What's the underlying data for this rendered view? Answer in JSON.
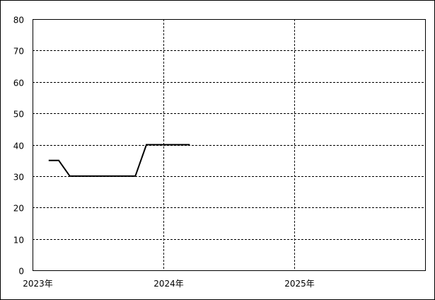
{
  "chart_data": {
    "type": "line",
    "title": "",
    "xlabel": "",
    "ylabel": "",
    "ylim": [
      0,
      80
    ],
    "yticks": [
      "0",
      "10",
      "20",
      "30",
      "40",
      "50",
      "60",
      "70",
      "80"
    ],
    "xlim": [
      "2023-01-01",
      "2026-01-01"
    ],
    "xticks": [
      {
        "date": "2023-01-01",
        "label": "2023年"
      },
      {
        "date": "2024-01-01",
        "label": "2024年"
      },
      {
        "date": "2025-01-01",
        "label": "2025年"
      }
    ],
    "grid": true,
    "line_color": "#000000",
    "series": [
      {
        "x": [
          "2023-02-15",
          "2023-03-15",
          "2023-04-15",
          "2023-10-15",
          "2023-11-15",
          "2024-03-15"
        ],
        "y": [
          35,
          35,
          30,
          30,
          40,
          40
        ]
      }
    ]
  }
}
